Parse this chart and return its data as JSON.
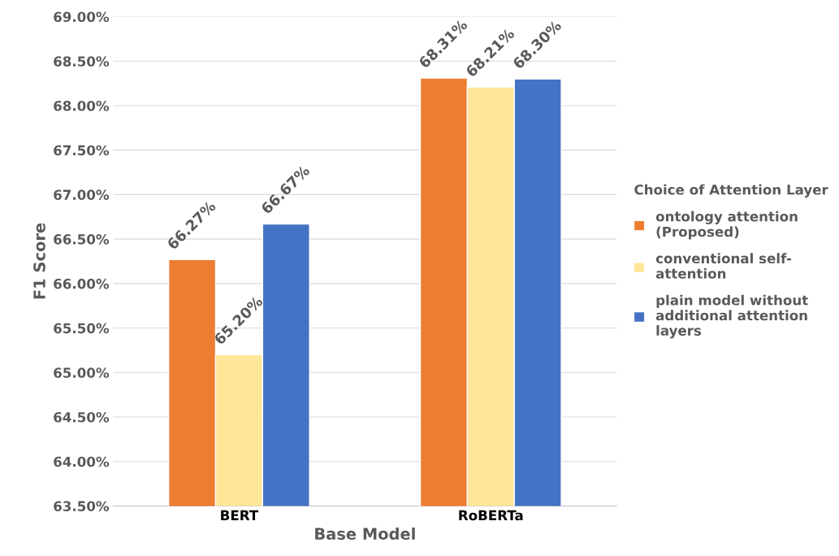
{
  "chart_data": {
    "type": "bar",
    "xlabel": "Base Model",
    "ylabel": "F1 Score",
    "legend_title": "Choice of Attention Layer",
    "categories": [
      "BERT",
      "RoBERTa"
    ],
    "series": [
      {
        "name": "ontology attention (Proposed)",
        "color": "#ed7d31",
        "values": [
          66.27,
          68.31
        ],
        "value_labels": [
          "66.27%",
          "68.31%"
        ]
      },
      {
        "name": "conventional self-attention",
        "color": "#ffe699",
        "values": [
          65.2,
          68.21
        ],
        "value_labels": [
          "65.20%",
          "68.21%"
        ]
      },
      {
        "name": "plain model without additional attention layers",
        "color": "#4472c4",
        "values": [
          66.67,
          68.3
        ],
        "value_labels": [
          "66.67%",
          "68.30%"
        ]
      }
    ],
    "ylim": [
      63.5,
      69
    ],
    "yticks": [
      {
        "value": 63.5,
        "label": "63.50%"
      },
      {
        "value": 64,
        "label": "64.00%"
      },
      {
        "value": 64.5,
        "label": "64.50%"
      },
      {
        "value": 65,
        "label": "65.00%"
      },
      {
        "value": 65.5,
        "label": "65.50%"
      },
      {
        "value": 66,
        "label": "66.00%"
      },
      {
        "value": 66.5,
        "label": "66.50%"
      },
      {
        "value": 67,
        "label": "67.00%"
      },
      {
        "value": 67.5,
        "label": "67.50%"
      },
      {
        "value": 68,
        "label": "68.00%"
      },
      {
        "value": 68.5,
        "label": "68.50%"
      },
      {
        "value": 69,
        "label": "69.00%"
      }
    ],
    "grid": "y",
    "legend": "right"
  }
}
